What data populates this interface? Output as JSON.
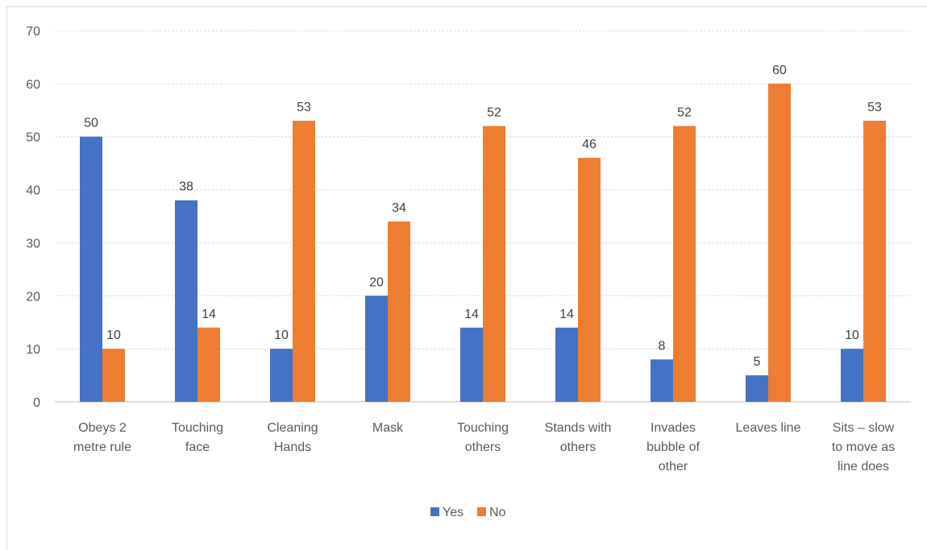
{
  "chart_data": {
    "type": "bar",
    "title": "",
    "xlabel": "",
    "ylabel": "",
    "ylim": [
      0,
      70
    ],
    "yticks": [
      0,
      10,
      20,
      30,
      40,
      50,
      60,
      70
    ],
    "grid": true,
    "legend_position": "bottom",
    "categories": [
      [
        "Obeys 2",
        "metre rule"
      ],
      [
        "Touching",
        "face"
      ],
      [
        "Cleaning",
        "Hands"
      ],
      [
        "Mask"
      ],
      [
        "Touching",
        "others"
      ],
      [
        "Stands with",
        "others"
      ],
      [
        "Invades",
        "bubble of",
        "other"
      ],
      [
        "Leaves line"
      ],
      [
        "Sits – slow",
        "to move as",
        "line does"
      ]
    ],
    "series": [
      {
        "name": "Yes",
        "color": "#4472c4",
        "values": [
          50,
          38,
          10,
          20,
          14,
          14,
          8,
          5,
          10
        ]
      },
      {
        "name": "No",
        "color": "#ed7d31",
        "values": [
          10,
          14,
          53,
          34,
          52,
          46,
          52,
          60,
          53
        ]
      }
    ]
  }
}
